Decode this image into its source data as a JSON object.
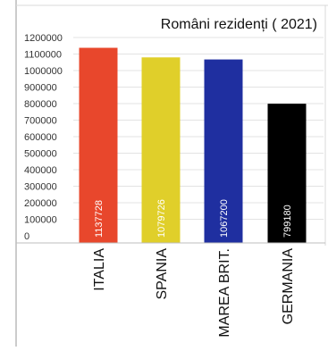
{
  "chart_data": {
    "type": "bar",
    "title": "Români rezidenți ( 2021)",
    "xlabel": "",
    "ylabel": "",
    "categories": [
      "ITALIA",
      "SPANIA",
      "MAREA BRIT.",
      "GERMANIA"
    ],
    "values": [
      1137728,
      1079726,
      1067200,
      799180
    ],
    "data_labels": [
      "1137728",
      "1079726",
      "1067200",
      "799180"
    ],
    "bar_colors": [
      "#e8472c",
      "#e0cf2a",
      "#1f2fa0",
      "#000000"
    ],
    "ylim": [
      0,
      1200000
    ],
    "yticks": [
      0,
      100000,
      200000,
      300000,
      400000,
      500000,
      600000,
      700000,
      800000,
      900000,
      1000000,
      1100000,
      1200000
    ],
    "ytick_labels": [
      "0",
      "100000",
      "200000",
      "300000",
      "400000",
      "500000",
      "600000",
      "700000",
      "800000",
      "900000",
      "1000000",
      "1100000",
      "1200000"
    ],
    "grid": true,
    "legend": "none"
  }
}
